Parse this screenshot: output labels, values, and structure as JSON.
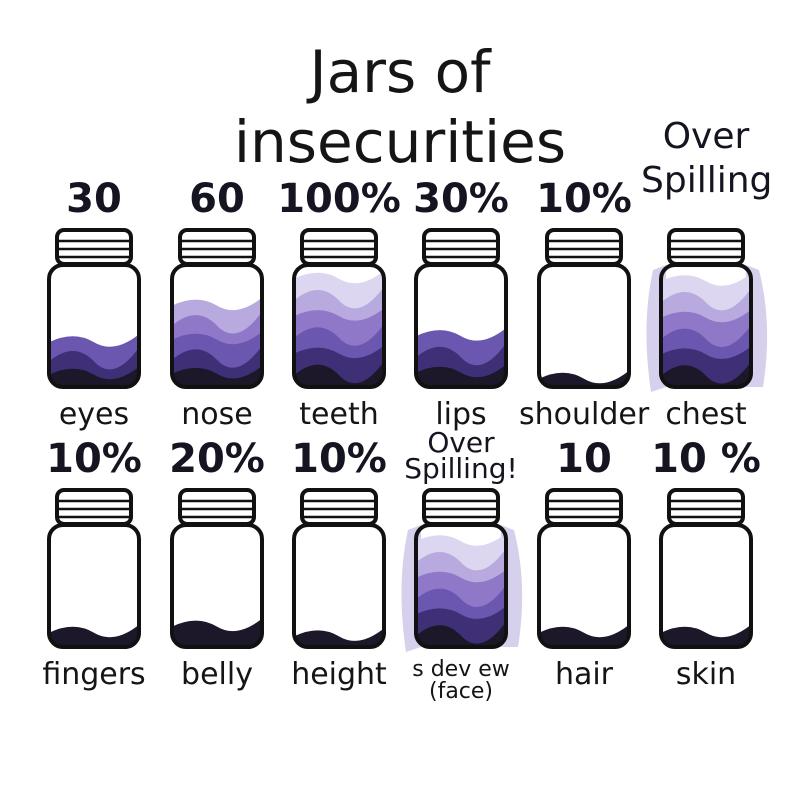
{
  "title_line1": "Jars of",
  "title_line2": "insecurities",
  "colors": {
    "layers": [
      "#dcd6f0",
      "#b8aadf",
      "#8f78c8",
      "#6b56b0",
      "#3e2f77",
      "#1c1829"
    ],
    "spill": "#d6d0ec",
    "outline": "#111111"
  },
  "jars": [
    {
      "label": "eyes",
      "amount": "30",
      "fill": 0.4,
      "overflow": false
    },
    {
      "label": "nose",
      "amount": "60",
      "fill": 0.7,
      "overflow": false
    },
    {
      "label": "teeth",
      "amount": "100%",
      "fill": 0.92,
      "overflow": false
    },
    {
      "label": "lips",
      "amount": "30%",
      "fill": 0.45,
      "overflow": false
    },
    {
      "label": "shoulder",
      "amount": "10%",
      "fill": 0.1,
      "overflow": false
    },
    {
      "label": "chest",
      "amount": "Over Spilling",
      "fill": 0.9,
      "overflow": true
    },
    {
      "label": "fingers",
      "amount": "10%",
      "fill": 0.15,
      "overflow": false
    },
    {
      "label": "belly",
      "amount": "20%",
      "fill": 0.2,
      "overflow": false
    },
    {
      "label": "height",
      "amount": "10%",
      "fill": 0.12,
      "overflow": false
    },
    {
      "label": "s dev ew (face)",
      "amount": "Over Spilling!",
      "fill": 0.9,
      "overflow": true
    },
    {
      "label": "hair",
      "amount": "10",
      "fill": 0.15,
      "overflow": false
    },
    {
      "label": "skin",
      "amount": "10 %",
      "fill": 0.15,
      "overflow": false
    }
  ]
}
